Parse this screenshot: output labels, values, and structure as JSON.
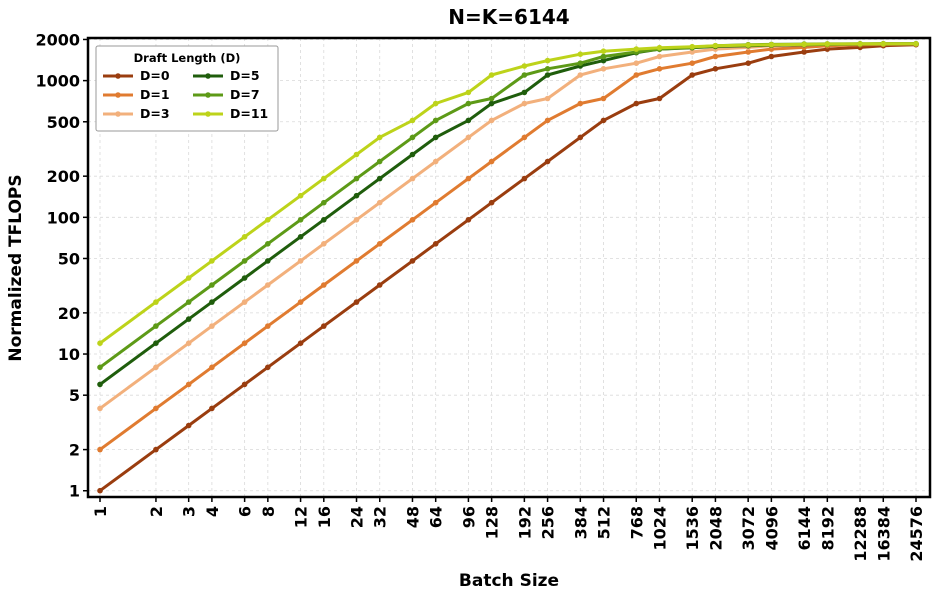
{
  "chart_data": {
    "type": "line",
    "title": "N=K=6144",
    "xlabel": "Batch Size",
    "ylabel": "Normalized TFLOPS",
    "x_scale": "log2",
    "y_scale": "log",
    "ylim": [
      0.9,
      2050
    ],
    "grid": true,
    "legend_placement": "top-left",
    "legend_title": "Draft Length (D)",
    "categories": [
      "1",
      "2",
      "3",
      "4",
      "6",
      "8",
      "12",
      "16",
      "24",
      "32",
      "48",
      "64",
      "96",
      "128",
      "192",
      "256",
      "384",
      "512",
      "768",
      "1024",
      "1536",
      "2048",
      "3072",
      "4096",
      "6144",
      "8192",
      "12288",
      "16384",
      "24576"
    ],
    "y_ticks": [
      "1",
      "2",
      "5",
      "10",
      "20",
      "50",
      "100",
      "200",
      "500",
      "1000",
      "2000"
    ],
    "series": [
      {
        "name": "D=0",
        "color": "#9a3d0f",
        "values": [
          1,
          2,
          3,
          4,
          6,
          8,
          12,
          16,
          24,
          32,
          48,
          64,
          96,
          128,
          192,
          256,
          384,
          512,
          680,
          740,
          1100,
          1220,
          1340,
          1500,
          1620,
          1700,
          1750,
          1800,
          1830
        ]
      },
      {
        "name": "D=1",
        "color": "#e07b30",
        "values": [
          2,
          4,
          6,
          8,
          12,
          16,
          24,
          32,
          48,
          64,
          96,
          128,
          192,
          256,
          384,
          512,
          680,
          740,
          1100,
          1220,
          1340,
          1500,
          1620,
          1700,
          1750,
          1800,
          1830,
          1840,
          1850
        ]
      },
      {
        "name": "D=3",
        "color": "#f2b07c",
        "values": [
          4,
          8,
          12,
          16,
          24,
          32,
          48,
          64,
          96,
          128,
          192,
          256,
          384,
          512,
          680,
          740,
          1100,
          1220,
          1340,
          1500,
          1620,
          1700,
          1750,
          1800,
          1830,
          1840,
          1850,
          1860,
          1860
        ]
      },
      {
        "name": "D=5",
        "color": "#1f5d0c",
        "values": [
          6,
          12,
          18,
          24,
          36,
          48,
          72,
          96,
          144,
          192,
          288,
          384,
          512,
          680,
          820,
          1100,
          1280,
          1400,
          1600,
          1700,
          1740,
          1780,
          1800,
          1820,
          1830,
          1840,
          1850,
          1860,
          1860
        ]
      },
      {
        "name": "D=7",
        "color": "#5d9a17",
        "values": [
          8,
          16,
          24,
          32,
          48,
          64,
          96,
          128,
          192,
          256,
          384,
          512,
          680,
          740,
          1100,
          1220,
          1340,
          1500,
          1620,
          1700,
          1750,
          1800,
          1830,
          1840,
          1850,
          1855,
          1860,
          1860,
          1860
        ]
      },
      {
        "name": "D=11",
        "color": "#bdd31a",
        "values": [
          12,
          24,
          36,
          48,
          72,
          96,
          144,
          192,
          288,
          384,
          512,
          680,
          820,
          1100,
          1280,
          1400,
          1560,
          1640,
          1700,
          1740,
          1770,
          1800,
          1820,
          1830,
          1840,
          1850,
          1855,
          1860,
          1860
        ]
      }
    ]
  }
}
